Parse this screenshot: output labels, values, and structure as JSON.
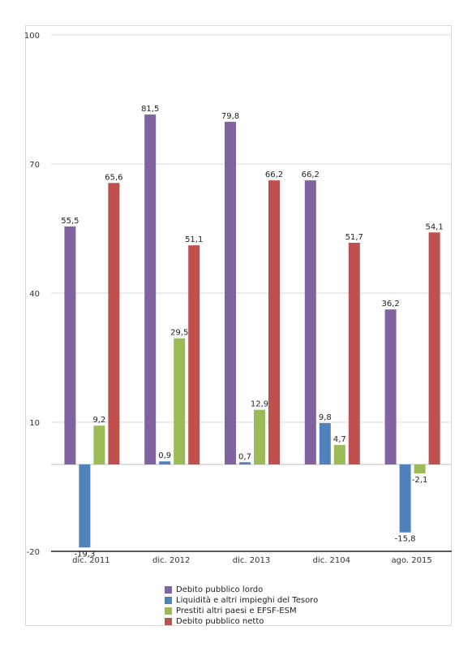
{
  "chart_data": {
    "type": "bar",
    "categories": [
      "dic. 2011",
      "dic. 2012",
      "dic. 2013",
      "dic. 2104",
      "ago. 2015"
    ],
    "series": [
      {
        "name": "Debito pubblico lordo",
        "color": "#8064a2",
        "values": [
          55.5,
          81.5,
          79.8,
          66.2,
          36.2
        ],
        "labels": [
          "55,5",
          "81,5",
          "79,8",
          "66,2",
          "36,2"
        ]
      },
      {
        "name": "Liquidità e altri impieghi del Tesoro",
        "color": "#4f81bd",
        "values": [
          -19.3,
          0.9,
          0.7,
          9.8,
          -15.8
        ],
        "labels": [
          "-19,3",
          "0,9",
          "0,7",
          "9,8",
          "-15,8"
        ]
      },
      {
        "name": "Prestiti altri paesi e EFSF-ESM",
        "color": "#9bbb59",
        "values": [
          9.2,
          29.5,
          12.9,
          4.7,
          -2.1
        ],
        "labels": [
          "9,2",
          "29,5",
          "12,9",
          "4,7",
          "-2,1"
        ]
      },
      {
        "name": "Debito pubblico netto",
        "color": "#c0504d",
        "values": [
          65.6,
          51.1,
          66.2,
          51.7,
          54.1
        ],
        "labels": [
          "65,6",
          "51,1",
          "66,2",
          "51,7",
          "54,1"
        ]
      }
    ],
    "yticks": [
      "100",
      "70",
      "40",
      "10",
      "-20"
    ],
    "ytick_values": [
      100,
      70,
      40,
      10,
      -20
    ],
    "ylim": [
      -20,
      100
    ],
    "grid": true,
    "legend_position": "bottom"
  }
}
